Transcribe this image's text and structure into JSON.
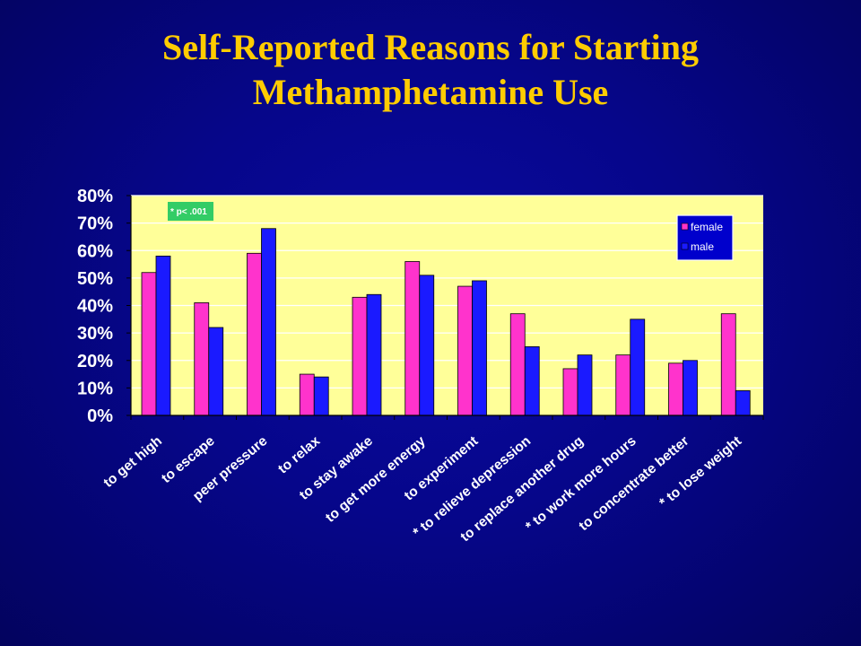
{
  "slide": {
    "title_line1": "Self-Reported Reasons for Starting",
    "title_line2": "Methamphetamine Use"
  },
  "chart_data": {
    "type": "bar",
    "categories": [
      "to get high",
      "to escape",
      "peer pressure",
      "to relax",
      "to stay awake",
      "to get more energy",
      "to experiment",
      "* to relieve depression",
      "to replace another drug",
      "* to work more hours",
      "to concentrate better",
      "* to lose weight"
    ],
    "series": [
      {
        "name": "female",
        "color": "#ff33cc",
        "values": [
          52,
          41,
          59,
          15,
          43,
          56,
          47,
          37,
          17,
          22,
          19,
          37
        ]
      },
      {
        "name": "male",
        "color": "#1a1aff",
        "values": [
          58,
          32,
          68,
          14,
          44,
          51,
          49,
          25,
          22,
          35,
          20,
          9
        ]
      }
    ],
    "ylim": [
      0,
      80
    ],
    "yticks": [
      "0%",
      "10%",
      "20%",
      "30%",
      "40%",
      "50%",
      "60%",
      "70%",
      "80%"
    ],
    "ytick_values": [
      0,
      10,
      20,
      30,
      40,
      50,
      60,
      70,
      80
    ],
    "plot_background": "#ffff99",
    "grid": true,
    "legend_position": "top-right",
    "note": "* p< .001",
    "note_color": "#33cc66"
  }
}
